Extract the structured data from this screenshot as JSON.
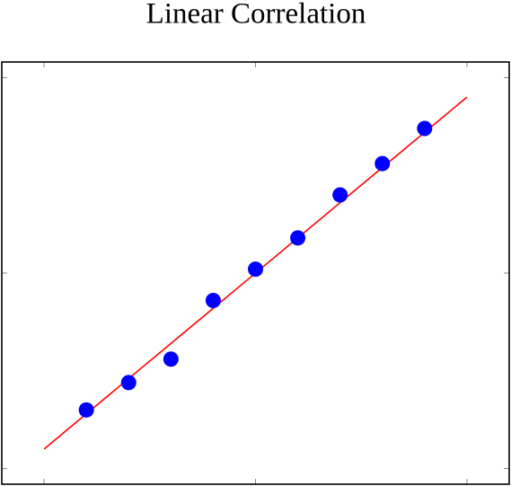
{
  "chart_data": {
    "type": "scatter",
    "title": "Linear Correlation",
    "x": [
      1,
      2,
      3,
      4,
      5,
      6,
      7,
      8,
      9
    ],
    "values": [
      3.0,
      4.4,
      5.6,
      8.6,
      10.2,
      11.8,
      14.0,
      15.6,
      17.4
    ],
    "color": "#0000ff",
    "fit_line": {
      "x": [
        0,
        10
      ],
      "values": [
        1,
        19
      ],
      "color": "#ff0000"
    },
    "xlim": [
      -1,
      11
    ],
    "xticks": [
      0,
      5,
      10
    ],
    "ylim": [
      -0.8,
      20.8
    ],
    "yticks": [
      0,
      10,
      20
    ]
  }
}
